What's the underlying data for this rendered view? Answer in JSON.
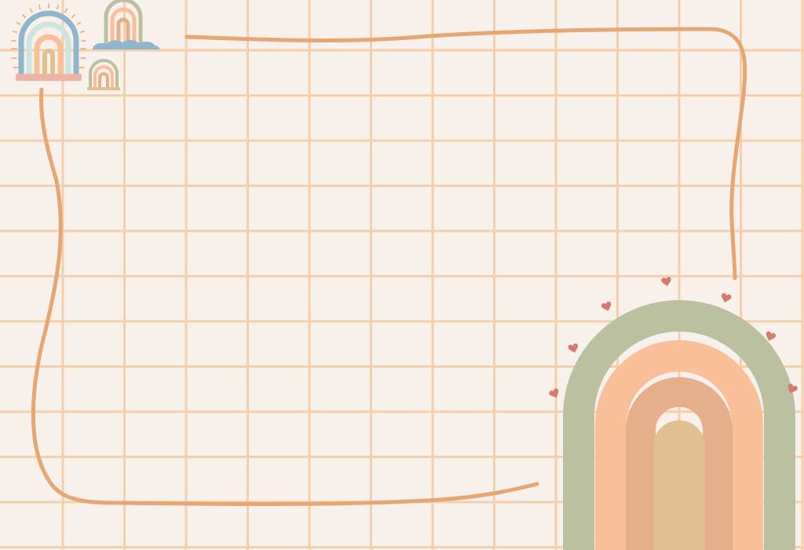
{
  "background": {
    "base_color": "#F8F1EB",
    "grid_line_color": "#F4CFAE"
  },
  "frame": {
    "stroke_color": "#E6A672"
  },
  "colors": {
    "sage": "#BBC0A0",
    "peach": "#F8BF98",
    "tan": "#E5AF8B",
    "sand": "#E0C090",
    "blue": "#8FB6CA",
    "mint": "#CFE4DF",
    "pink": "#EDB4A4",
    "heart": "#D6786E",
    "sun_rays": "#F0A070"
  },
  "decorations": {
    "big_rainbow": "rainbow-icon",
    "small_rainbows": [
      "rainbow-icon",
      "rainbow-icon",
      "rainbow-icon"
    ],
    "hearts": "heart-icon"
  }
}
